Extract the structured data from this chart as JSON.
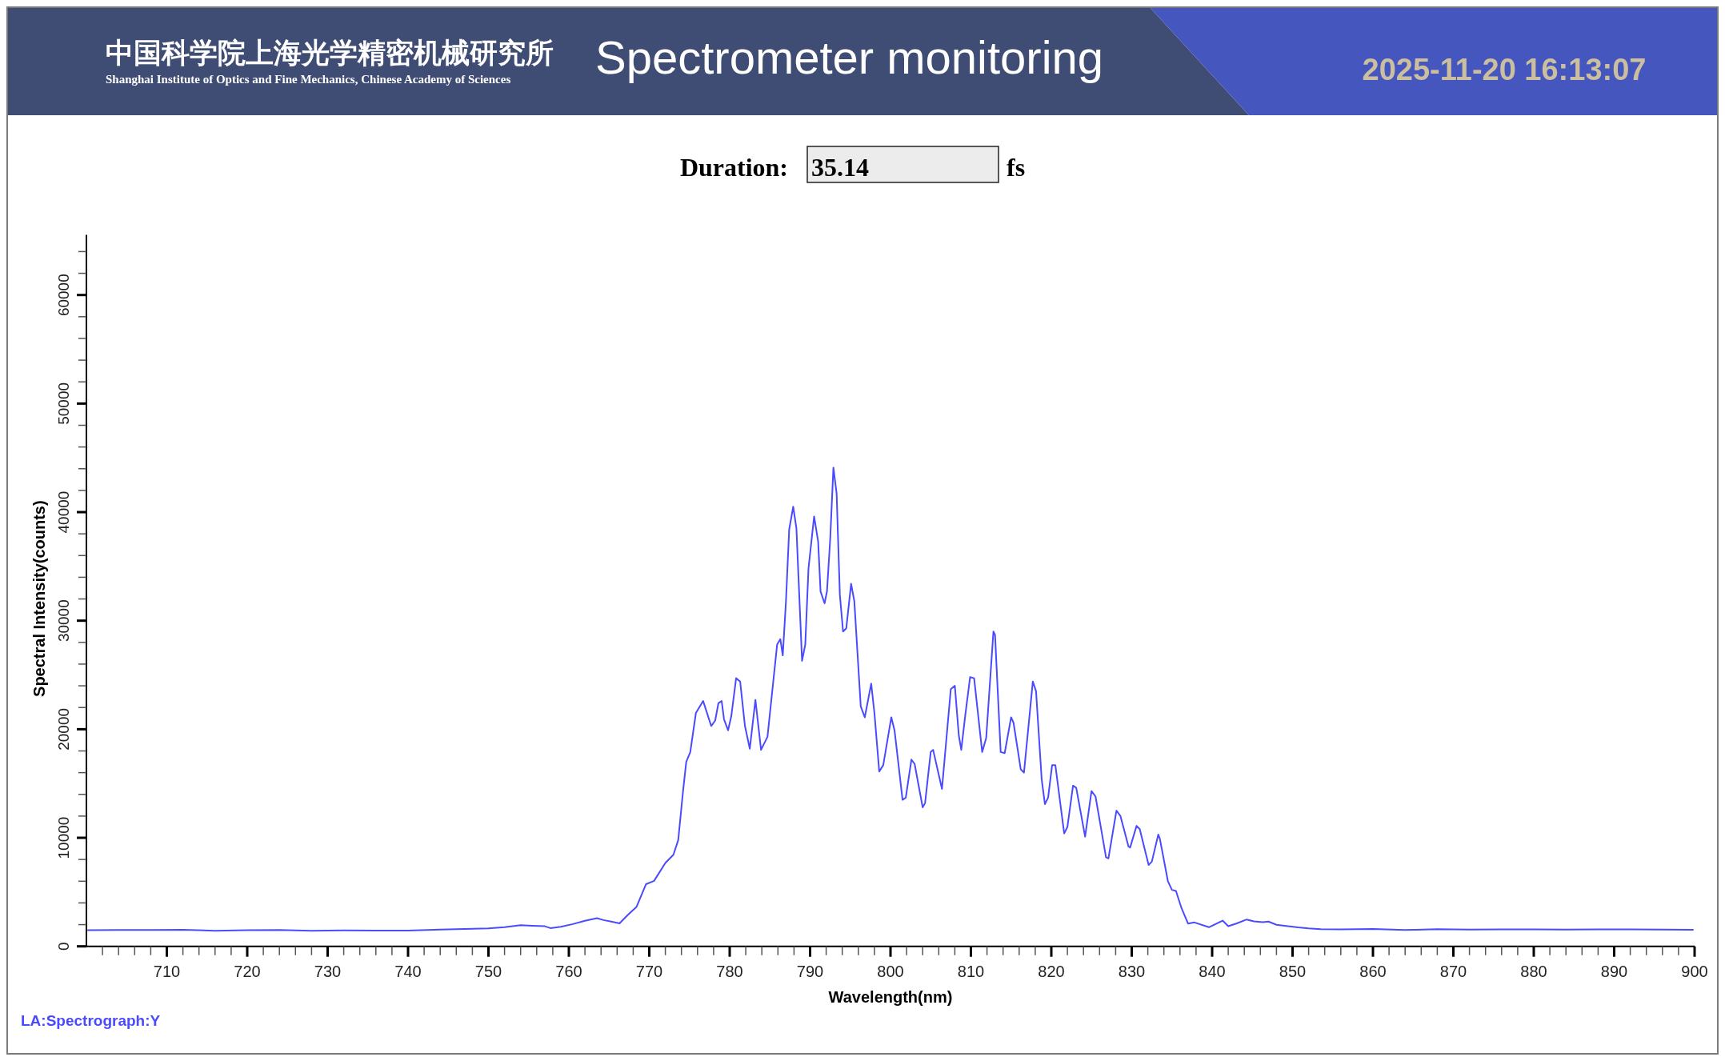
{
  "chart_data": {
    "type": "line",
    "title": "Spectrometer monitoring",
    "annotations": [
      "中国科学院上海光学精密机械研究所",
      "Shanghai Institute of Optics and Fine Mechanics, Chinese Academy of Sciences",
      "2025-11-20 16:13:07",
      "Duration:",
      "35.14",
      "fs"
    ],
    "xlabel": "Wavelength(nm)",
    "ylabel": "Spectral Intensity(counts)",
    "xlim": [
      700,
      900
    ],
    "ylim": [
      0,
      65535
    ],
    "xticks": [
      {
        "value": 702,
        "label": null
      },
      {
        "value": 704,
        "label": null
      },
      {
        "value": 706,
        "label": null
      },
      {
        "value": 708,
        "label": null
      },
      710,
      {
        "value": 712,
        "label": null
      },
      {
        "value": 714,
        "label": null
      },
      {
        "value": 716,
        "label": null
      },
      {
        "value": 718,
        "label": null
      },
      720,
      {
        "value": 722,
        "label": null
      },
      {
        "value": 724,
        "label": null
      },
      {
        "value": 726,
        "label": null
      },
      {
        "value": 728,
        "label": null
      },
      730,
      {
        "value": 732,
        "label": null
      },
      {
        "value": 734,
        "label": null
      },
      {
        "value": 736,
        "label": null
      },
      {
        "value": 738,
        "label": null
      },
      740,
      {
        "value": 742,
        "label": null
      },
      {
        "value": 744,
        "label": null
      },
      {
        "value": 746,
        "label": null
      },
      {
        "value": 748,
        "label": null
      },
      750,
      {
        "value": 752,
        "label": null
      },
      {
        "value": 754,
        "label": null
      },
      {
        "value": 756,
        "label": null
      },
      {
        "value": 758,
        "label": null
      },
      760,
      {
        "value": 762,
        "label": null
      },
      {
        "value": 764,
        "label": null
      },
      {
        "value": 766,
        "label": null
      },
      {
        "value": 768,
        "label": null
      },
      770,
      {
        "value": 772,
        "label": null
      },
      {
        "value": 774,
        "label": null
      },
      {
        "value": 776,
        "label": null
      },
      {
        "value": 778,
        "label": null
      },
      780,
      {
        "value": 782,
        "label": null
      },
      {
        "value": 784,
        "label": null
      },
      {
        "value": 786,
        "label": null
      },
      {
        "value": 788,
        "label": null
      },
      790,
      {
        "value": 792,
        "label": null
      },
      {
        "value": 794,
        "label": null
      },
      {
        "value": 796,
        "label": null
      },
      {
        "value": 798,
        "label": null
      },
      800,
      {
        "value": 802,
        "label": null
      },
      {
        "value": 804,
        "label": null
      },
      {
        "value": 806,
        "label": null
      },
      {
        "value": 808,
        "label": null
      },
      810,
      {
        "value": 812,
        "label": null
      },
      {
        "value": 814,
        "label": null
      },
      {
        "value": 816,
        "label": null
      },
      {
        "value": 818,
        "label": null
      },
      820,
      {
        "value": 822,
        "label": null
      },
      {
        "value": 824,
        "label": null
      },
      {
        "value": 826,
        "label": null
      },
      {
        "value": 828,
        "label": null
      },
      830,
      {
        "value": 832,
        "label": null
      },
      {
        "value": 834,
        "label": null
      },
      {
        "value": 836,
        "label": null
      },
      {
        "value": 838,
        "label": null
      },
      840,
      {
        "value": 842,
        "label": null
      },
      {
        "value": 844,
        "label": null
      },
      {
        "value": 846,
        "label": null
      },
      {
        "value": 848,
        "label": null
      },
      850,
      {
        "value": 852,
        "label": null
      },
      {
        "value": 854,
        "label": null
      },
      {
        "value": 856,
        "label": null
      },
      {
        "value": 858,
        "label": null
      },
      860,
      {
        "value": 862,
        "label": null
      },
      {
        "value": 864,
        "label": null
      },
      {
        "value": 866,
        "label": null
      },
      {
        "value": 868,
        "label": null
      },
      870,
      {
        "value": 872,
        "label": null
      },
      {
        "value": 874,
        "label": null
      },
      {
        "value": 876,
        "label": null
      },
      {
        "value": 878,
        "label": null
      },
      880,
      {
        "value": 882,
        "label": null
      },
      {
        "value": 884,
        "label": null
      },
      {
        "value": 886,
        "label": null
      },
      {
        "value": 888,
        "label": null
      },
      890,
      {
        "value": 892,
        "label": null
      },
      {
        "value": 894,
        "label": null
      },
      {
        "value": 896,
        "label": null
      },
      {
        "value": 898,
        "label": null
      },
      900
    ],
    "yticks": [
      0,
      {
        "value": 2000,
        "label": null
      },
      {
        "value": 4000,
        "label": null
      },
      {
        "value": 6000,
        "label": null
      },
      {
        "value": 8000,
        "label": null
      },
      10000,
      {
        "value": 12000,
        "label": null
      },
      {
        "value": 14000,
        "label": null
      },
      {
        "value": 16000,
        "label": null
      },
      {
        "value": 18000,
        "label": null
      },
      20000,
      {
        "value": 22000,
        "label": null
      },
      {
        "value": 24000,
        "label": null
      },
      {
        "value": 26000,
        "label": null
      },
      {
        "value": 28000,
        "label": null
      },
      30000,
      {
        "value": 32000,
        "label": null
      },
      {
        "value": 34000,
        "label": null
      },
      {
        "value": 36000,
        "label": null
      },
      {
        "value": 38000,
        "label": null
      },
      40000,
      {
        "value": 42000,
        "label": null
      },
      {
        "value": 44000,
        "label": null
      },
      {
        "value": 46000,
        "label": null
      },
      {
        "value": 48000,
        "label": null
      },
      50000,
      {
        "value": 52000,
        "label": null
      },
      {
        "value": 54000,
        "label": null
      },
      {
        "value": 56000,
        "label": null
      },
      {
        "value": 58000,
        "label": null
      },
      60000,
      {
        "value": 62000,
        "label": null
      },
      {
        "value": 64000,
        "label": null
      }
    ],
    "legend": "bottom left",
    "x": [
      700.2,
      704,
      708,
      712,
      716,
      720,
      724,
      728,
      732,
      736,
      740,
      744,
      748,
      750,
      752,
      754,
      755.5,
      757,
      757.7,
      759,
      760.5,
      762,
      763.5,
      764.3,
      765.5,
      766.3,
      767.3,
      768.4,
      769.6,
      770.6,
      772.0,
      773.0,
      773.6,
      774.2,
      774.6,
      775.1,
      775.8,
      776.7,
      777.7,
      778.2,
      778.6,
      779.0,
      779.3,
      779.8,
      780.2,
      780.8,
      781.3,
      781.9,
      782.5,
      783.2,
      783.9,
      784.7,
      785.9,
      786.3,
      786.6,
      787.0,
      787.4,
      787.9,
      788.3,
      789.0,
      789.4,
      789.8,
      790.5,
      791.0,
      791.3,
      791.8,
      792.1,
      792.5,
      792.9,
      793.3,
      793.7,
      794.1,
      794.5,
      795.1,
      795.5,
      796.3,
      796.8,
      797.6,
      798.0,
      798.6,
      799.1,
      800.1,
      800.5,
      801.5,
      801.9,
      802.6,
      803.0,
      804.0,
      804.3,
      805.0,
      805.3,
      806.4,
      807.5,
      808.0,
      808.5,
      808.8,
      809.3,
      809.9,
      810.4,
      811.4,
      811.9,
      812.8,
      813.0,
      813.7,
      814.2,
      815.0,
      815.3,
      816.2,
      816.6,
      817.7,
      818.1,
      818.8,
      819.2,
      819.6,
      820.1,
      820.5,
      821.6,
      822.0,
      822.7,
      823.1,
      824.2,
      825.0,
      825.5,
      826.8,
      827.1,
      828.1,
      828.6,
      829.6,
      829.8,
      830.6,
      831.0,
      832.1,
      832.5,
      833.3,
      833.5,
      834.5,
      835.0,
      835.5,
      836.2,
      837.0,
      837.8,
      839.6,
      841.3,
      842.0,
      843,
      844.3,
      845.2,
      846.3,
      847,
      848.0,
      849,
      850.7,
      852,
      853.5,
      856,
      860,
      864,
      868,
      872,
      876,
      880,
      884,
      888,
      892,
      896,
      899.8
    ],
    "series": [
      {
        "name": "LA:Spectrograph:Y",
        "color": "#4a4aff",
        "values": [
          1480,
          1500,
          1510,
          1530,
          1430,
          1480,
          1500,
          1440,
          1470,
          1460,
          1450,
          1540,
          1620,
          1650,
          1760,
          1950,
          1900,
          1850,
          1680,
          1800,
          2050,
          2350,
          2600,
          2420,
          2250,
          2120,
          2870,
          3620,
          5730,
          6030,
          7680,
          8440,
          9790,
          14300,
          17000,
          17900,
          21500,
          22600,
          20300,
          20800,
          22400,
          22600,
          20900,
          19900,
          21200,
          24700,
          24400,
          20300,
          18200,
          22700,
          18100,
          19300,
          27800,
          28300,
          26800,
          31800,
          38400,
          40500,
          38500,
          26300,
          27800,
          34800,
          39600,
          37300,
          32700,
          31600,
          32700,
          37500,
          44100,
          41700,
          32400,
          29000,
          29300,
          33400,
          31800,
          22100,
          21100,
          24200,
          21500,
          16100,
          16700,
          21100,
          19900,
          13500,
          13700,
          17200,
          16800,
          12800,
          13200,
          17900,
          18100,
          14500,
          23700,
          24000,
          19400,
          18100,
          21300,
          24800,
          24700,
          17900,
          19200,
          29000,
          28700,
          17900,
          17800,
          21100,
          20600,
          16300,
          16000,
          24400,
          23500,
          15400,
          13100,
          13700,
          16700,
          16700,
          10400,
          11000,
          14800,
          14600,
          10100,
          14300,
          13800,
          8200,
          8100,
          12500,
          12000,
          9200,
          9100,
          11100,
          10800,
          7500,
          7800,
          10300,
          9900,
          6000,
          5200,
          5100,
          3500,
          2100,
          2200,
          1760,
          2370,
          1860,
          2100,
          2470,
          2300,
          2220,
          2280,
          1990,
          1900,
          1740,
          1650,
          1590,
          1560,
          1600,
          1500,
          1580,
          1550,
          1560,
          1570,
          1540,
          1560,
          1560,
          1540,
          1530
        ]
      }
    ]
  }
}
